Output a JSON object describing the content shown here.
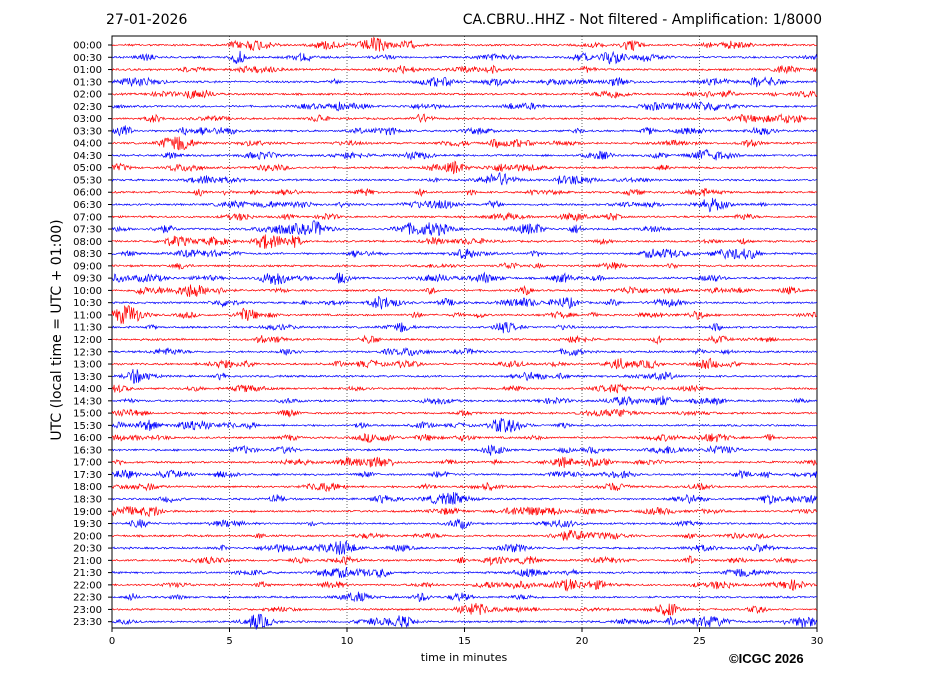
{
  "header": {
    "date": "27-01-2026",
    "title": "CA.CBRU..HHZ - Not filtered - Amplification: 1/8000"
  },
  "copyright": "©ICGC 2026",
  "colors": {
    "even_rows": "#ff0000",
    "odd_rows": "#0000ff",
    "grid": "#000000"
  },
  "chart_data": {
    "type": "line",
    "title": "CA.CBRU..HHZ - Not filtered - Amplification: 1/8000",
    "xlabel": "time in minutes",
    "ylabel": "UTC (local time = UTC + 01:00)",
    "xlim": [
      0,
      30
    ],
    "xticks": [
      0,
      5,
      10,
      15,
      20,
      25,
      30
    ],
    "vertical_grid": true,
    "grid_style": "dotted",
    "rows": [
      "00:00",
      "00:30",
      "01:00",
      "01:30",
      "02:00",
      "02:30",
      "03:00",
      "03:30",
      "04:00",
      "04:30",
      "05:00",
      "05:30",
      "06:00",
      "06:30",
      "07:00",
      "07:30",
      "08:00",
      "08:30",
      "09:00",
      "09:30",
      "10:00",
      "10:30",
      "11:00",
      "11:30",
      "12:00",
      "12:30",
      "13:00",
      "13:30",
      "14:00",
      "14:30",
      "15:00",
      "15:30",
      "16:00",
      "16:30",
      "17:00",
      "17:30",
      "18:00",
      "18:30",
      "19:00",
      "19:30",
      "20:00",
      "20:30",
      "21:00",
      "21:30",
      "22:00",
      "22:30",
      "23:00",
      "23:30"
    ],
    "row_colors": [
      "red",
      "blue"
    ]
  }
}
